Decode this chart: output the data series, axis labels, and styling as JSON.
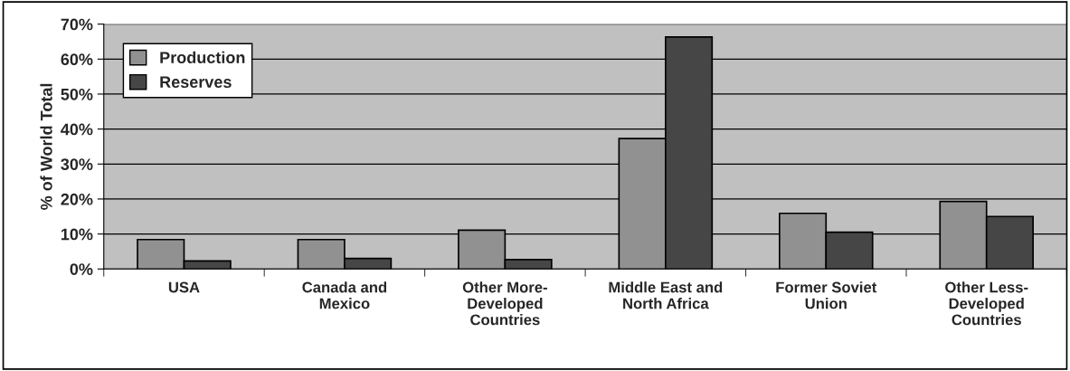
{
  "chart_data": {
    "type": "bar",
    "ylabel": "% of World Total",
    "categories": [
      "USA",
      "Canada and\nMexico",
      "Other More-\nDeveloped\nCountries",
      "Middle East and\nNorth Africa",
      "Former Soviet\nUnion",
      "Other Less-\nDeveloped\nCountries"
    ],
    "series": [
      {
        "name": "Production",
        "color": "#919191",
        "values": [
          8.4,
          8.4,
          11.1,
          37.3,
          15.9,
          19.3
        ]
      },
      {
        "name": "Reserves",
        "color": "#464646",
        "values": [
          2.3,
          3.0,
          2.7,
          66.3,
          10.5,
          15.0
        ]
      }
    ],
    "ylim": [
      0,
      70
    ],
    "yticks": [
      {
        "value": 0,
        "label": "0%"
      },
      {
        "value": 10,
        "label": "10%"
      },
      {
        "value": 20,
        "label": "20%"
      },
      {
        "value": 30,
        "label": "30%"
      },
      {
        "value": 40,
        "label": "40%"
      },
      {
        "value": 50,
        "label": "50%"
      },
      {
        "value": 60,
        "label": "60%"
      },
      {
        "value": 70,
        "label": "70%"
      }
    ],
    "grid": "y",
    "legend": "top left"
  }
}
